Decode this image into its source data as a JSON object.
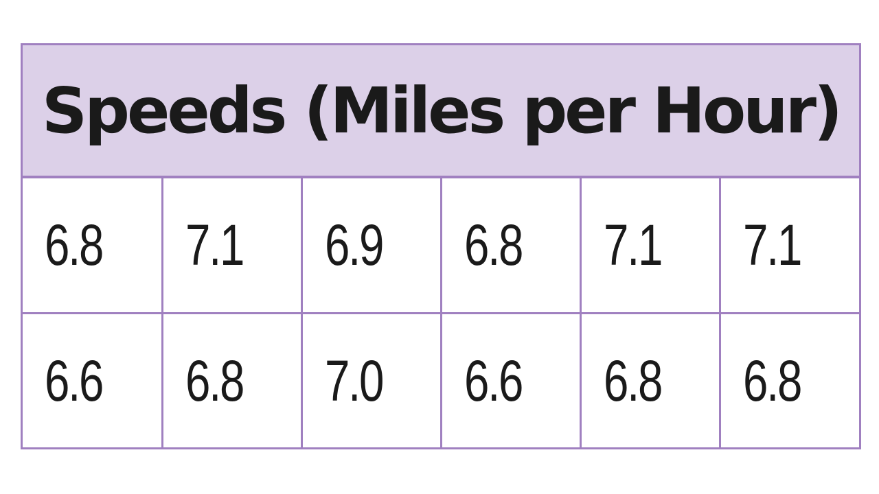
{
  "table": {
    "title": "Speeds (Miles per Hour)",
    "rows": [
      [
        "6.8",
        "7.1",
        "6.9",
        "6.8",
        "7.1",
        "7.1"
      ],
      [
        "6.6",
        "6.8",
        "7.0",
        "6.6",
        "6.8",
        "6.8"
      ]
    ]
  },
  "colors": {
    "header_background": "#dcd0e8",
    "border": "#a080c0",
    "text": "#1a1a1a"
  }
}
